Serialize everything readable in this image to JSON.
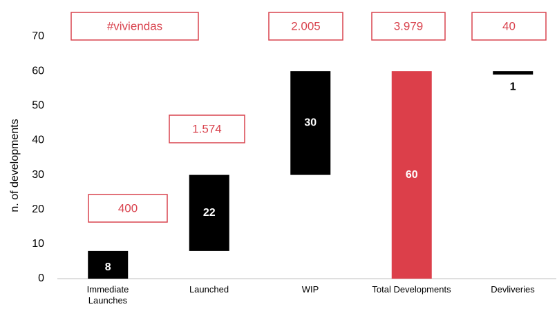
{
  "chart_data": {
    "type": "waterfall",
    "y_label": "n. of developments",
    "categories": [
      "Immediate\nLaunches",
      "Launched",
      "WIP",
      "Total Developments",
      "Devliveries"
    ],
    "values": [
      8,
      22,
      30,
      60,
      1
    ],
    "measures": [
      "increase",
      "increase",
      "increase",
      "total",
      "decrease"
    ],
    "color": "#000000",
    "total_color": "#dc3f4a",
    "annotations": [
      "#viviendas",
      "400",
      "1.574",
      "2.005",
      "3.979",
      "40"
    ],
    "annotation_color": "#d9434e",
    "ylim": [
      0,
      70
    ],
    "yticks": [
      0,
      10,
      20,
      30,
      40,
      50,
      60,
      70
    ],
    "grid": false
  }
}
